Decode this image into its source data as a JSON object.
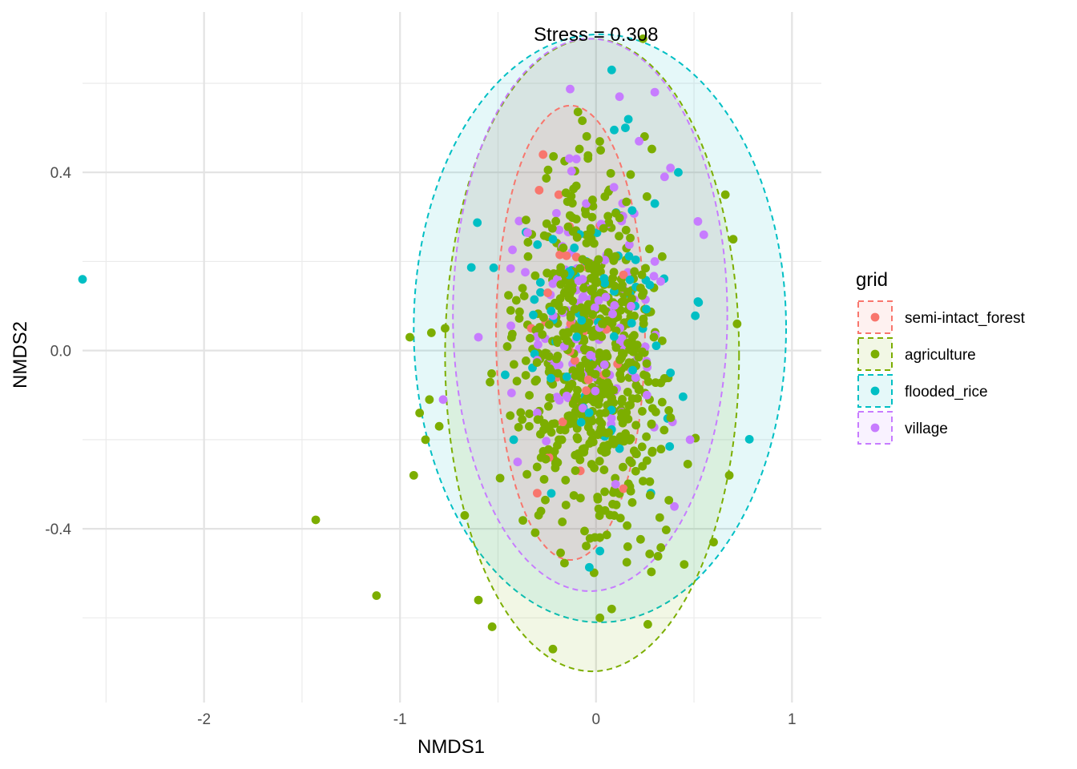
{
  "chart_data": {
    "type": "scatter",
    "title": "",
    "xlabel": "NMDS1",
    "ylabel": "NMDS2",
    "xlim": [
      -2.62,
      1.15
    ],
    "ylim": [
      -0.79,
      0.76
    ],
    "x_ticks": [
      -2,
      -1,
      0,
      1
    ],
    "y_ticks": [
      -0.4,
      0.0,
      0.4
    ],
    "x_tick_labels": [
      "-2",
      "-1",
      "0",
      "1"
    ],
    "y_tick_labels": [
      "-0.4",
      "0.0",
      "0.4"
    ],
    "grid": true,
    "legend_title": "grid",
    "legend_position": "right",
    "annotation": {
      "text": "Stress = 0.308",
      "x": 0.0,
      "y": 0.71
    },
    "series": [
      {
        "name": "semi-intact_forest",
        "color": "#F8766D",
        "ellipse": {
          "cx": -0.13,
          "cy": 0.04,
          "rx": 0.38,
          "ry": 0.51
        },
        "points": [
          [
            -0.27,
            0.44
          ],
          [
            -0.19,
            0.35
          ],
          [
            -0.29,
            0.36
          ],
          [
            -0.1,
            0.21
          ],
          [
            -0.33,
            0.05
          ],
          [
            -0.13,
            0.06
          ],
          [
            -0.02,
            0.07
          ],
          [
            0.14,
            0.17
          ],
          [
            -0.24,
            -0.24
          ],
          [
            -0.05,
            -0.09
          ],
          [
            -0.17,
            -0.16
          ],
          [
            -0.08,
            -0.27
          ],
          [
            -0.3,
            -0.32
          ],
          [
            0.14,
            -0.31
          ],
          [
            -0.05,
            0.0
          ],
          [
            0.11,
            -0.03
          ],
          [
            -0.2,
            -0.06
          ],
          [
            0.02,
            0.28
          ]
        ]
      },
      {
        "name": "agriculture",
        "color": "#7CAE00",
        "ellipse": {
          "cx": -0.02,
          "cy": -0.01,
          "rx": 0.75,
          "ry": 0.71
        },
        "points": [
          [
            -1.12,
            -0.55
          ],
          [
            -1.43,
            -0.38
          ],
          [
            -0.93,
            -0.28
          ],
          [
            -0.85,
            -0.11
          ],
          [
            -0.87,
            -0.2
          ],
          [
            -0.9,
            -0.14
          ],
          [
            -0.67,
            -0.37
          ],
          [
            -0.6,
            -0.56
          ],
          [
            -0.53,
            -0.62
          ],
          [
            -0.22,
            -0.67
          ],
          [
            0.02,
            -0.6
          ],
          [
            0.08,
            -0.58
          ],
          [
            0.24,
            0.7
          ],
          [
            0.7,
            0.25
          ],
          [
            0.66,
            0.35
          ],
          [
            0.68,
            -0.28
          ],
          [
            0.6,
            -0.43
          ],
          [
            0.72,
            0.06
          ],
          [
            0.45,
            -0.48
          ],
          [
            -0.8,
            -0.17
          ],
          [
            -0.95,
            0.03
          ],
          [
            -0.84,
            0.04
          ],
          [
            -0.77,
            0.05
          ]
        ]
      },
      {
        "name": "flooded_rice",
        "color": "#00BFC4",
        "ellipse": {
          "cx": 0.02,
          "cy": 0.05,
          "rx": 0.95,
          "ry": 0.66
        },
        "points": [
          [
            -2.62,
            0.16
          ],
          [
            0.08,
            0.63
          ],
          [
            0.15,
            0.5
          ],
          [
            0.3,
            0.33
          ],
          [
            -0.22,
            0.25
          ],
          [
            -0.42,
            -0.2
          ],
          [
            0.38,
            -0.05
          ],
          [
            0.28,
            -0.32
          ],
          [
            0.12,
            -0.22
          ],
          [
            -0.05,
            0.2
          ],
          [
            0.02,
            -0.45
          ],
          [
            0.52,
            0.11
          ],
          [
            -0.32,
            0.08
          ],
          [
            0.42,
            0.4
          ],
          [
            -0.06,
            -0.14
          ],
          [
            0.2,
            0.1
          ]
        ]
      },
      {
        "name": "village",
        "color": "#C77CFF",
        "ellipse": {
          "cx": -0.03,
          "cy": 0.08,
          "rx": 0.7,
          "ry": 0.62
        },
        "points": [
          [
            0.12,
            0.57
          ],
          [
            0.3,
            0.58
          ],
          [
            0.22,
            0.47
          ],
          [
            -0.1,
            0.43
          ],
          [
            0.38,
            0.41
          ],
          [
            0.35,
            0.39
          ],
          [
            0.52,
            0.29
          ],
          [
            0.55,
            0.26
          ],
          [
            -0.6,
            0.03
          ],
          [
            -0.78,
            -0.11
          ],
          [
            -0.4,
            -0.25
          ],
          [
            0.48,
            -0.2
          ],
          [
            0.4,
            -0.35
          ],
          [
            -0.22,
            0.15
          ],
          [
            0.05,
            0.12
          ],
          [
            -0.12,
            -0.06
          ],
          [
            0.26,
            -0.1
          ],
          [
            -0.3,
            -0.14
          ],
          [
            0.1,
            -0.3
          ],
          [
            0.3,
            0.2
          ],
          [
            -0.05,
            0.33
          ]
        ]
      }
    ]
  }
}
